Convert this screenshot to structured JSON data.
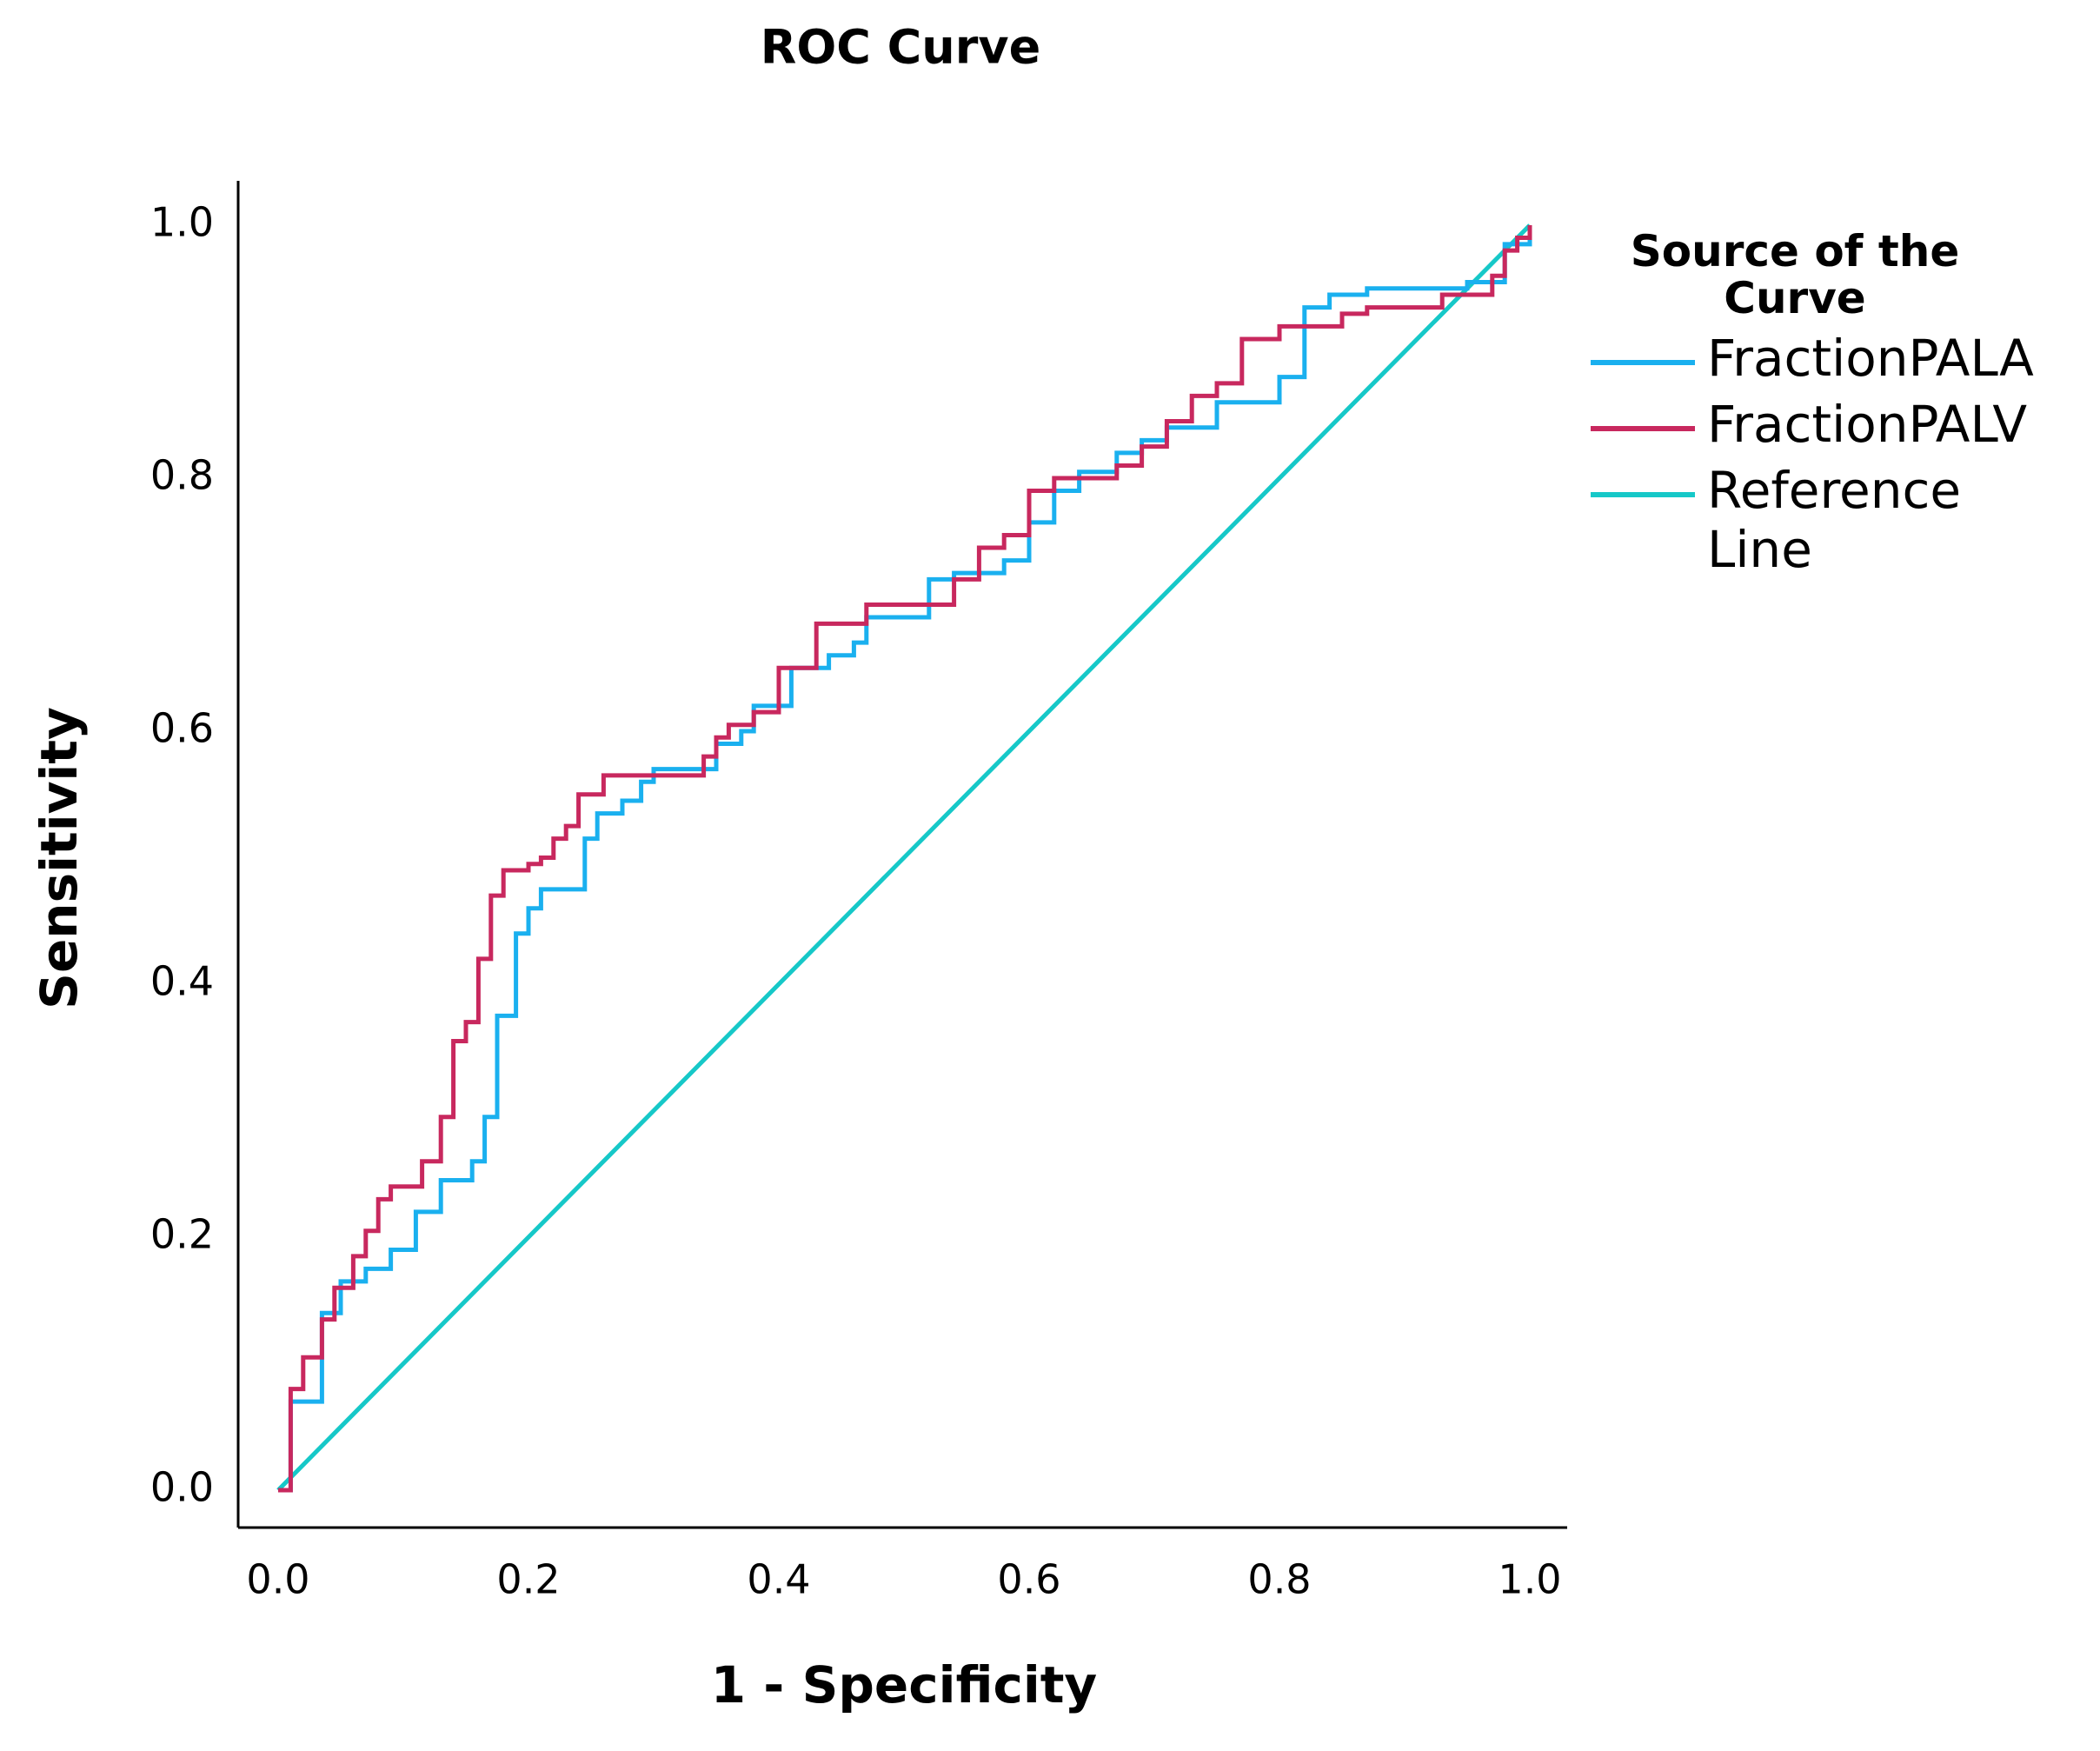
{
  "chart_data": {
    "type": "line",
    "title": "ROC Curve",
    "x_label": "1 - Specificity",
    "y_label": "Sensitivity",
    "legend_title": "Source of the Curve",
    "legend": "right",
    "xlim": [
      0,
      1
    ],
    "ylim": [
      0,
      1
    ],
    "xticks": [
      {
        "value": 0,
        "label": "0.0"
      },
      0.2,
      0.4,
      0.6,
      0.8,
      {
        "value": 1,
        "label": "1.0"
      }
    ],
    "yticks": [
      {
        "value": 0,
        "label": "0.0"
      },
      0.2,
      0.4,
      0.6,
      0.8,
      {
        "value": 1,
        "label": "1.0"
      }
    ],
    "series": [
      {
        "name": "FractionPALA",
        "color": "#1ab0ef",
        "x": [
          0,
          0.01,
          0.01,
          0.035,
          0.035,
          0.05,
          0.05,
          0.07,
          0.07,
          0.09,
          0.09,
          0.11,
          0.11,
          0.13,
          0.13,
          0.155,
          0.155,
          0.165,
          0.165,
          0.175,
          0.175,
          0.19,
          0.19,
          0.2,
          0.2,
          0.21,
          0.21,
          0.245,
          0.245,
          0.255,
          0.255,
          0.275,
          0.275,
          0.29,
          0.29,
          0.3,
          0.3,
          0.35,
          0.35,
          0.37,
          0.37,
          0.38,
          0.38,
          0.41,
          0.41,
          0.44,
          0.44,
          0.46,
          0.46,
          0.47,
          0.47,
          0.52,
          0.52,
          0.54,
          0.54,
          0.58,
          0.58,
          0.6,
          0.6,
          0.62,
          0.62,
          0.64,
          0.64,
          0.67,
          0.67,
          0.69,
          0.69,
          0.71,
          0.71,
          0.75,
          0.75,
          0.8,
          0.8,
          0.82,
          0.82,
          0.84,
          0.84,
          0.87,
          0.87,
          0.95,
          0.95,
          0.98,
          0.98,
          1,
          1
        ],
        "values": [
          0,
          0,
          0.07,
          0.07,
          0.14,
          0.14,
          0.165,
          0.165,
          0.175,
          0.175,
          0.19,
          0.19,
          0.22,
          0.22,
          0.245,
          0.245,
          0.26,
          0.26,
          0.295,
          0.295,
          0.375,
          0.375,
          0.44,
          0.44,
          0.46,
          0.46,
          0.475,
          0.475,
          0.515,
          0.515,
          0.535,
          0.535,
          0.545,
          0.545,
          0.56,
          0.56,
          0.57,
          0.57,
          0.59,
          0.59,
          0.6,
          0.6,
          0.62,
          0.62,
          0.65,
          0.65,
          0.66,
          0.66,
          0.67,
          0.67,
          0.69,
          0.69,
          0.72,
          0.72,
          0.725,
          0.725,
          0.735,
          0.735,
          0.765,
          0.765,
          0.79,
          0.79,
          0.805,
          0.805,
          0.82,
          0.82,
          0.83,
          0.83,
          0.84,
          0.84,
          0.86,
          0.86,
          0.88,
          0.88,
          0.935,
          0.935,
          0.945,
          0.945,
          0.95,
          0.95,
          0.955,
          0.955,
          0.985,
          0.985,
          1
        ]
      },
      {
        "name": "FractionPALV",
        "color": "#c8285e",
        "x": [
          0,
          0.01,
          0.01,
          0.02,
          0.02,
          0.035,
          0.035,
          0.045,
          0.045,
          0.06,
          0.06,
          0.07,
          0.07,
          0.08,
          0.08,
          0.09,
          0.09,
          0.115,
          0.115,
          0.13,
          0.13,
          0.14,
          0.14,
          0.15,
          0.15,
          0.16,
          0.16,
          0.17,
          0.17,
          0.18,
          0.18,
          0.2,
          0.2,
          0.21,
          0.21,
          0.22,
          0.22,
          0.23,
          0.23,
          0.24,
          0.24,
          0.26,
          0.26,
          0.34,
          0.34,
          0.35,
          0.35,
          0.36,
          0.36,
          0.38,
          0.38,
          0.4,
          0.4,
          0.43,
          0.43,
          0.47,
          0.47,
          0.54,
          0.54,
          0.56,
          0.56,
          0.58,
          0.58,
          0.6,
          0.6,
          0.62,
          0.62,
          0.67,
          0.67,
          0.69,
          0.69,
          0.71,
          0.71,
          0.73,
          0.73,
          0.75,
          0.75,
          0.77,
          0.77,
          0.8,
          0.8,
          0.85,
          0.85,
          0.87,
          0.87,
          0.93,
          0.93,
          0.97,
          0.97,
          0.98,
          0.98,
          0.99,
          0.99,
          1,
          1
        ],
        "values": [
          0,
          0,
          0.08,
          0.08,
          0.105,
          0.105,
          0.135,
          0.135,
          0.16,
          0.16,
          0.185,
          0.185,
          0.205,
          0.205,
          0.23,
          0.23,
          0.24,
          0.24,
          0.26,
          0.26,
          0.295,
          0.295,
          0.355,
          0.355,
          0.37,
          0.37,
          0.42,
          0.42,
          0.47,
          0.47,
          0.49,
          0.49,
          0.495,
          0.495,
          0.5,
          0.5,
          0.515,
          0.515,
          0.525,
          0.525,
          0.55,
          0.55,
          0.565,
          0.565,
          0.58,
          0.58,
          0.595,
          0.595,
          0.605,
          0.605,
          0.615,
          0.615,
          0.65,
          0.65,
          0.685,
          0.685,
          0.7,
          0.7,
          0.72,
          0.72,
          0.745,
          0.745,
          0.755,
          0.755,
          0.79,
          0.79,
          0.8,
          0.8,
          0.81,
          0.81,
          0.825,
          0.825,
          0.845,
          0.845,
          0.865,
          0.865,
          0.875,
          0.875,
          0.91,
          0.91,
          0.92,
          0.92,
          0.93,
          0.93,
          0.935,
          0.935,
          0.945,
          0.945,
          0.96,
          0.96,
          0.98,
          0.98,
          0.99,
          0.99,
          1
        ]
      },
      {
        "name": "Reference Line",
        "color": "#16c8c8",
        "x": [
          0,
          1
        ],
        "values": [
          0,
          1
        ]
      }
    ]
  }
}
